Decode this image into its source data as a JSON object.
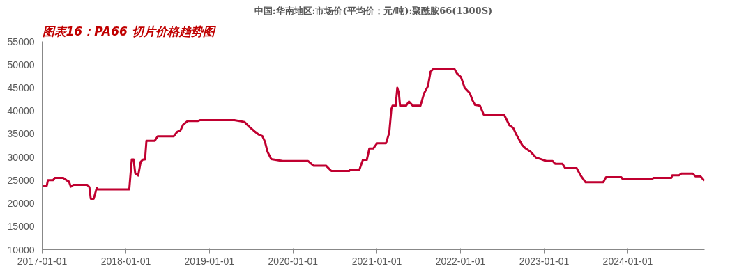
{
  "chart_data": {
    "type": "line",
    "title": "图表16：PA66 切片价格趋势图",
    "subtitle": "中国:华南地区:市场价(平均价；元/吨):聚酰胺66(1300S)",
    "x": [
      "2017-01-01",
      "2017-01-21",
      "2017-01-26",
      "2017-02-17",
      "2017-02-25",
      "2017-04-03",
      "2017-04-17",
      "2017-04-28",
      "2017-05-06",
      "2017-05-17",
      "2017-07-17",
      "2017-07-26",
      "2017-08-01",
      "2017-08-14",
      "2017-08-27",
      "2017-09-02",
      "2018-01-16",
      "2018-01-27",
      "2018-02-04",
      "2018-02-11",
      "2018-02-24",
      "2018-03-07",
      "2018-03-18",
      "2018-03-26",
      "2018-04-01",
      "2018-05-07",
      "2018-05-20",
      "2018-07-29",
      "2018-08-14",
      "2018-08-27",
      "2018-09-08",
      "2018-09-28",
      "2018-11-11",
      "2018-11-22",
      "2019-04-20",
      "2019-06-03",
      "2019-06-25",
      "2019-07-17",
      "2019-08-03",
      "2019-08-20",
      "2019-08-31",
      "2019-09-12",
      "2019-09-28",
      "2019-11-17",
      "2020-03-07",
      "2020-03-30",
      "2020-05-24",
      "2020-06-16",
      "2020-09-02",
      "2020-09-05",
      "2020-10-16",
      "2020-11-01",
      "2020-11-18",
      "2020-11-29",
      "2020-12-16",
      "2021-01-02",
      "2021-02-10",
      "2021-02-24",
      "2021-03-05",
      "2021-03-10",
      "2021-03-24",
      "2021-03-31",
      "2021-04-07",
      "2021-04-12",
      "2021-05-08",
      "2021-05-21",
      "2021-06-07",
      "2021-07-10",
      "2021-07-26",
      "2021-08-12",
      "2021-08-23",
      "2021-09-03",
      "2021-12-06",
      "2021-12-17",
      "2022-01-03",
      "2022-01-19",
      "2022-02-11",
      "2022-02-22",
      "2022-03-05",
      "2022-03-27",
      "2022-04-12",
      "2022-07-10",
      "2022-08-02",
      "2022-08-19",
      "2022-08-30",
      "2022-09-27",
      "2022-10-13",
      "2022-11-04",
      "2022-11-26",
      "2022-12-19",
      "2023-01-10",
      "2023-02-07",
      "2023-02-18",
      "2023-03-22",
      "2023-04-03",
      "2023-05-23",
      "2023-06-09",
      "2023-07-01",
      "2023-09-16",
      "2023-09-28",
      "2023-12-04",
      "2023-12-09",
      "2024-04-17",
      "2024-04-22",
      "2024-07-09",
      "2024-07-13",
      "2024-08-11",
      "2024-08-22",
      "2024-10-11",
      "2024-10-22",
      "2024-11-13",
      "2024-11-30"
    ],
    "series": [
      {
        "color": "#c00030",
        "values": [
          23800,
          23800,
          25000,
          25000,
          25500,
          25500,
          25000,
          24700,
          23600,
          24000,
          24000,
          23500,
          21000,
          21000,
          23300,
          23000,
          23000,
          29500,
          29500,
          26500,
          26000,
          29000,
          29500,
          29500,
          33500,
          33500,
          34500,
          34500,
          35500,
          35700,
          37000,
          37800,
          37800,
          38000,
          38000,
          37600,
          36500,
          35550,
          34900,
          34550,
          33400,
          31100,
          29550,
          29150,
          29150,
          28150,
          28150,
          27000,
          27000,
          27200,
          27200,
          29400,
          29400,
          31850,
          31850,
          33000,
          33000,
          35300,
          40350,
          41100,
          41100,
          45000,
          43800,
          41100,
          41100,
          42000,
          41100,
          41100,
          43800,
          45350,
          48450,
          49000,
          49000,
          48050,
          47300,
          45000,
          43800,
          42300,
          41300,
          41100,
          39200,
          39200,
          36900,
          36300,
          35100,
          32600,
          31850,
          31100,
          29900,
          29550,
          29150,
          29150,
          28550,
          28550,
          27600,
          27600,
          26050,
          24550,
          24550,
          25650,
          25650,
          25300,
          25300,
          25500,
          25500,
          26050,
          26050,
          26450,
          26450,
          25850,
          25850,
          24900
        ]
      }
    ],
    "xlim": [
      "2017-01-01",
      "2024-12-01"
    ],
    "xticks": [
      "2017-01-01",
      "2018-01-01",
      "2019-01-01",
      "2020-01-01",
      "2021-01-01",
      "2022-01-01",
      "2023-01-01",
      "2024-01-01"
    ],
    "ylim": [
      10000,
      55000
    ],
    "yticks": [
      10000,
      15000,
      20000,
      25000,
      30000,
      35000,
      40000,
      45000,
      50000,
      55000
    ],
    "grid": false,
    "marker": "none",
    "line_style": "solid"
  }
}
